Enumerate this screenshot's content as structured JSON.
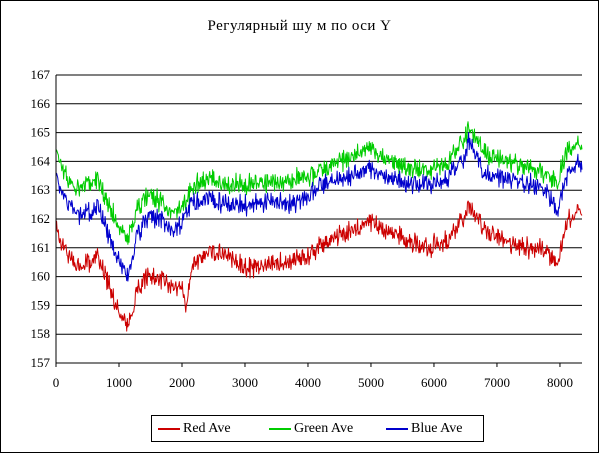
{
  "chart_data": {
    "type": "line",
    "title": "Регулярный шу м по оси Y",
    "xlabel": "",
    "ylabel": "",
    "xlim": [
      0,
      8350
    ],
    "ylim": [
      157,
      167
    ],
    "xticks": [
      "0",
      "1000",
      "2000",
      "3000",
      "4000",
      "5000",
      "6000",
      "7000",
      "8000"
    ],
    "yticks": [
      "157",
      "158",
      "159",
      "160",
      "161",
      "162",
      "163",
      "164",
      "165",
      "166",
      "167"
    ],
    "grid": "horizontal",
    "legend_position": "bottom",
    "noise_amplitude": 0.35,
    "x": [
      0,
      200,
      400,
      600,
      650,
      800,
      1000,
      1100,
      1200,
      1300,
      1500,
      1700,
      1800,
      2000,
      2050,
      2200,
      2500,
      2700,
      3000,
      3300,
      3600,
      3900,
      4000,
      4200,
      4500,
      5000,
      5200,
      5500,
      5900,
      6200,
      6500,
      6550,
      6700,
      6900,
      7200,
      7500,
      7800,
      7950,
      8100,
      8300
    ],
    "series": [
      {
        "name": "Red Ave",
        "color": "#cc0000",
        "values": [
          161.6,
          160.7,
          160.3,
          160.6,
          160.8,
          159.9,
          158.8,
          158.4,
          158.6,
          159.6,
          160.1,
          159.8,
          159.6,
          159.6,
          158.9,
          160.6,
          160.9,
          160.8,
          160.3,
          160.4,
          160.5,
          160.6,
          160.7,
          161.1,
          161.4,
          161.9,
          161.7,
          161.3,
          161.0,
          161.3,
          162.0,
          162.5,
          161.9,
          161.5,
          161.1,
          161.0,
          160.9,
          160.4,
          161.8,
          162.4
        ]
      },
      {
        "name": "Green Ave",
        "color": "#00cc00",
        "values": [
          164.3,
          163.3,
          163.0,
          163.3,
          163.5,
          162.6,
          161.8,
          161.3,
          161.6,
          162.4,
          162.9,
          162.5,
          162.2,
          162.4,
          162.6,
          163.2,
          163.5,
          163.2,
          163.2,
          163.3,
          163.3,
          163.4,
          163.4,
          163.7,
          164.0,
          164.4,
          164.2,
          163.8,
          163.7,
          164.0,
          164.8,
          165.2,
          164.6,
          164.2,
          163.9,
          163.8,
          163.6,
          163.2,
          164.3,
          164.7
        ]
      },
      {
        "name": "Blue Ave",
        "color": "#0000cc",
        "values": [
          163.4,
          162.5,
          162.1,
          162.3,
          162.6,
          161.6,
          160.6,
          160.1,
          160.4,
          161.5,
          162.2,
          161.9,
          161.6,
          161.8,
          162.3,
          162.6,
          162.7,
          162.5,
          162.5,
          162.6,
          162.6,
          162.6,
          162.8,
          163.2,
          163.4,
          163.7,
          163.6,
          163.2,
          163.2,
          163.4,
          164.2,
          164.8,
          163.9,
          163.5,
          163.3,
          163.2,
          163.0,
          162.2,
          163.5,
          164.0
        ]
      }
    ]
  }
}
